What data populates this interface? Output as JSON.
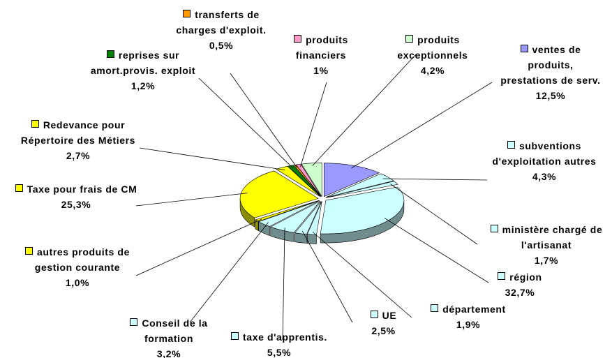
{
  "chart_data": {
    "type": "pie3d",
    "categories": [
      "ventes de produits, prestations de serv.",
      "subventions d'exploitation autres",
      "ministère chargé de l'artisanat",
      "région",
      "département",
      "UE",
      "taxe d'apprentis.",
      "Conseil de la formation",
      "autres produits de gestion courante",
      "Taxe pour frais de CM",
      "Redevance pour Répertoire des Métiers",
      "reprises sur amort.provis. exploit",
      "transferts de charges d'exploit.",
      "produits financiers",
      "produits exceptionnels"
    ],
    "values": [
      12.5,
      4.3,
      1.7,
      32.7,
      1.9,
      2.5,
      5.5,
      3.2,
      1.0,
      25.3,
      2.7,
      1.2,
      0.5,
      1,
      4.2
    ],
    "value_labels": [
      "12,5%",
      "4,3%",
      "1,7%",
      "32,7%",
      "1,9%",
      "2,5%",
      "5,5%",
      "3,2%",
      "1,0%",
      "25,3%",
      "2,7%",
      "1,2%",
      "0,5%",
      "1%",
      "4,2%"
    ],
    "colors": [
      "#9999ff",
      "#ccffff",
      "#ccffff",
      "#ccffff",
      "#ccffff",
      "#ccffff",
      "#ccffff",
      "#ccffff",
      "#ffff00",
      "#ffff00",
      "#ffff00",
      "#008000",
      "#ff9900",
      "#ff99cc",
      "#ccffcc"
    ]
  }
}
